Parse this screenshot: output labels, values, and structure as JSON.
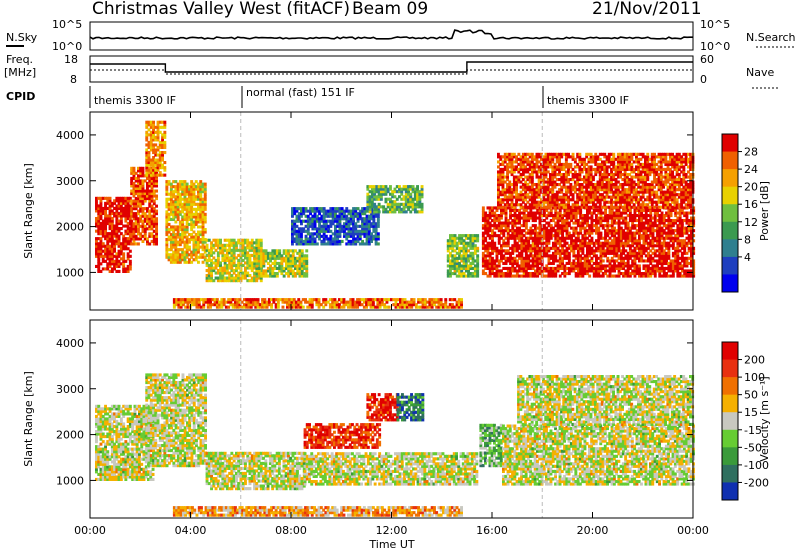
{
  "header": {
    "title": "Christmas Valley West (fitACF)",
    "beam": "Beam 09",
    "date": "21/Nov/2011"
  },
  "top_panels": {
    "nsky_label": "N.Sky",
    "nsky_ticks": [
      "10^5",
      "10^0"
    ],
    "nsearch_label": "N.Search",
    "nsearch_ticks": [
      "10^5",
      "10^0"
    ],
    "freq_label": "Freq.",
    "freq_unit": "[MHz]",
    "freq_ticks": [
      "18",
      "8"
    ],
    "nave_label": "Nave",
    "nave_ticks": [
      "60",
      "0"
    ],
    "cpid_label": "CPID",
    "cpid_segments": [
      {
        "label": "themis 3300 IF",
        "start": 0,
        "end": 6
      },
      {
        "label": "normal (fast) 151 IF",
        "start": 6,
        "end": 18
      },
      {
        "label": "themis 3300 IF",
        "start": 18,
        "end": 24
      }
    ]
  },
  "chart_data": [
    {
      "type": "heatmap",
      "name": "power",
      "ylabel": "Slant Range [km]",
      "yticks": [
        "4000",
        "3000",
        "2000",
        "1000"
      ],
      "ylim": [
        180,
        4500
      ],
      "xlim": [
        0,
        24
      ],
      "colorbar_label": "Power [dB]",
      "colorbar_ticks": [
        "28",
        "24",
        "20",
        "16",
        "12",
        "8",
        "4"
      ],
      "colors": [
        "#0000ee",
        "#1e3fbf",
        "#2f7f8f",
        "#3b9a50",
        "#6fbf3f",
        "#e8d100",
        "#f5a000",
        "#f06000",
        "#e00000"
      ],
      "regions": [
        {
          "t0": 0.2,
          "t1": 1.6,
          "r0": 1000,
          "r1": 2600,
          "level": 0.95
        },
        {
          "t0": 1.6,
          "t1": 2.6,
          "r0": 1600,
          "r1": 3300,
          "level": 0.85
        },
        {
          "t0": 2.2,
          "t1": 3.0,
          "r0": 3100,
          "r1": 4300,
          "level": 0.75
        },
        {
          "t0": 3.0,
          "t1": 4.6,
          "r0": 1200,
          "r1": 3000,
          "level": 0.7
        },
        {
          "t0": 4.6,
          "t1": 6.8,
          "r0": 800,
          "r1": 1700,
          "level": 0.6
        },
        {
          "t0": 6.5,
          "t1": 8.6,
          "r0": 900,
          "r1": 1500,
          "level": 0.55
        },
        {
          "t0": 8.0,
          "t1": 11.5,
          "r0": 1600,
          "r1": 2400,
          "level": 0.2
        },
        {
          "t0": 11.0,
          "t1": 13.2,
          "r0": 2300,
          "r1": 2900,
          "level": 0.45
        },
        {
          "t0": 14.2,
          "t1": 15.4,
          "r0": 900,
          "r1": 1800,
          "level": 0.5
        },
        {
          "t0": 15.6,
          "t1": 24.0,
          "r0": 900,
          "r1": 2400,
          "level": 0.95
        },
        {
          "t0": 16.2,
          "t1": 24.0,
          "r0": 2400,
          "r1": 3600,
          "level": 0.9
        },
        {
          "t0": 3.3,
          "t1": 14.8,
          "r0": 220,
          "r1": 420,
          "level": 0.8
        }
      ]
    },
    {
      "type": "heatmap",
      "name": "velocity",
      "ylabel": "Slant Range [km]",
      "yticks": [
        "4000",
        "3000",
        "2000",
        "1000"
      ],
      "ylim": [
        180,
        4500
      ],
      "xlim": [
        0,
        24
      ],
      "xlabel": "Time UT",
      "xticks": [
        "00:00",
        "04:00",
        "08:00",
        "12:00",
        "16:00",
        "20:00",
        "00:00"
      ],
      "colorbar_label": "Velocity [m s⁻¹]",
      "colorbar_ticks": [
        "200",
        "100",
        "50",
        "15",
        "-15",
        "-50",
        "-100",
        "-200"
      ],
      "colors": [
        "#1030b0",
        "#2f6f5f",
        "#3a9a3a",
        "#66cc33",
        "#c8c8c0",
        "#f5b000",
        "#f07000",
        "#e83010",
        "#e00000"
      ],
      "regions": [
        {
          "t0": 0.2,
          "t1": 2.5,
          "r0": 1000,
          "r1": 2600,
          "level": 0.5
        },
        {
          "t0": 2.2,
          "t1": 4.6,
          "r0": 1300,
          "r1": 3300,
          "level": 0.5
        },
        {
          "t0": 4.6,
          "t1": 8.5,
          "r0": 800,
          "r1": 1600,
          "level": 0.5
        },
        {
          "t0": 8.5,
          "t1": 11.5,
          "r0": 1700,
          "r1": 2200,
          "level": 0.85
        },
        {
          "t0": 11.0,
          "t1": 12.2,
          "r0": 2300,
          "r1": 2900,
          "level": 0.9
        },
        {
          "t0": 12.2,
          "t1": 13.2,
          "r0": 2300,
          "r1": 2900,
          "level": 0.2
        },
        {
          "t0": 8.5,
          "t1": 15.4,
          "r0": 900,
          "r1": 1600,
          "level": 0.5
        },
        {
          "t0": 15.5,
          "t1": 16.4,
          "r0": 1300,
          "r1": 2200,
          "level": 0.35
        },
        {
          "t0": 16.4,
          "t1": 24.0,
          "r0": 900,
          "r1": 2200,
          "level": 0.5
        },
        {
          "t0": 17.0,
          "t1": 24.0,
          "r0": 2200,
          "r1": 3300,
          "level": 0.5
        },
        {
          "t0": 3.3,
          "t1": 14.8,
          "r0": 220,
          "r1": 420,
          "level": 0.65
        }
      ]
    }
  ]
}
